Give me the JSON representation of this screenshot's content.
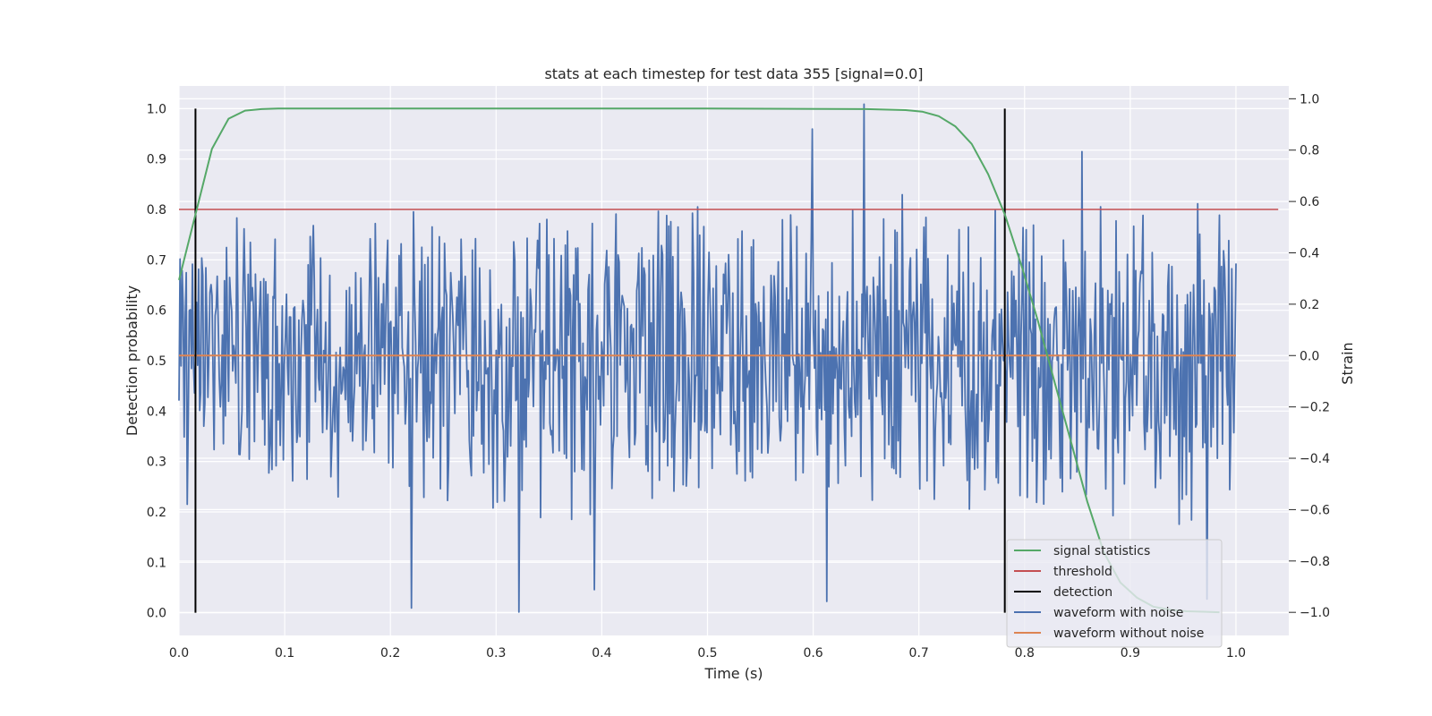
{
  "chart_data": {
    "type": "line",
    "title": "stats at each timestep for test data 355 [signal=0.0]",
    "xlabel": "Time (s)",
    "ylabel_left": "Detection probability",
    "ylabel_right": "Strain",
    "xlim": [
      0.0,
      1.05
    ],
    "ylim_left": [
      -0.045,
      1.045
    ],
    "ylim_right": [
      -1.09,
      1.05
    ],
    "x_ticks": [
      "0.0",
      "0.1",
      "0.2",
      "0.3",
      "0.4",
      "0.5",
      "0.6",
      "0.7",
      "0.8",
      "0.9",
      "1.0"
    ],
    "y_left_ticks": [
      "0.0",
      "0.1",
      "0.2",
      "0.3",
      "0.4",
      "0.5",
      "0.6",
      "0.7",
      "0.8",
      "0.9",
      "1.0"
    ],
    "y_right_ticks": [
      "−1.0",
      "−0.8",
      "−0.6",
      "−0.4",
      "−0.2",
      "0.0",
      "0.2",
      "0.4",
      "0.6",
      "0.8",
      "1.0"
    ],
    "grid": true,
    "legend_position": "lower-right",
    "series": [
      {
        "name": "signal statistics",
        "color": "#55a868",
        "axis": "left",
        "x": [
          0.0,
          0.0156,
          0.0312,
          0.0469,
          0.0625,
          0.0781,
          0.0938,
          0.1094,
          0.3,
          0.5,
          0.65,
          0.6875,
          0.7031,
          0.7188,
          0.7344,
          0.75,
          0.7656,
          0.7813,
          0.7969,
          0.8125,
          0.8281,
          0.8438,
          0.8594,
          0.875,
          0.8906,
          0.9063,
          0.9219,
          0.9375,
          0.9531,
          0.9688,
          0.9844
        ],
        "y": [
          0.66,
          0.79,
          0.92,
          0.98,
          0.996,
          0.999,
          1.0,
          1.0,
          1.0,
          1.0,
          0.999,
          0.997,
          0.994,
          0.985,
          0.965,
          0.93,
          0.87,
          0.79,
          0.69,
          0.58,
          0.46,
          0.34,
          0.22,
          0.12,
          0.06,
          0.03,
          0.012,
          0.006,
          0.003,
          0.002,
          0.001
        ]
      },
      {
        "name": "threshold",
        "color": "#c44e52",
        "axis": "left",
        "x": [
          0.0,
          1.04
        ],
        "y": [
          0.8,
          0.8
        ]
      },
      {
        "name": "detection",
        "color": "#000000",
        "axis": "left",
        "segments": [
          {
            "x": 0.0156,
            "y": [
              0.0,
              1.0
            ]
          },
          {
            "x": 0.7813,
            "y": [
              0.0,
              1.0
            ]
          }
        ]
      },
      {
        "name": "waveform with noise",
        "color": "#4c72b0",
        "axis": "right",
        "x_range": [
          0.0,
          1.0
        ],
        "point_count": 1024,
        "y_range": [
          -1.0,
          1.0
        ],
        "y_sample": [
          -0.3,
          0.25,
          -0.25,
          0.3,
          -0.5,
          0.2,
          -0.1,
          0.4,
          -0.6,
          0.15,
          0.55,
          -0.35,
          0.05,
          -0.2,
          0.35,
          -0.45,
          0.1,
          0.45,
          -0.15,
          0.25,
          -0.55,
          0.05,
          0.4,
          -0.3,
          0.2,
          -0.05,
          0.5,
          -0.4,
          0.15,
          -0.25
        ]
      },
      {
        "name": "waveform without noise",
        "color": "#dd8452",
        "axis": "right",
        "x": [
          0.0,
          1.0
        ],
        "y": [
          0.0,
          0.0
        ]
      }
    ]
  }
}
